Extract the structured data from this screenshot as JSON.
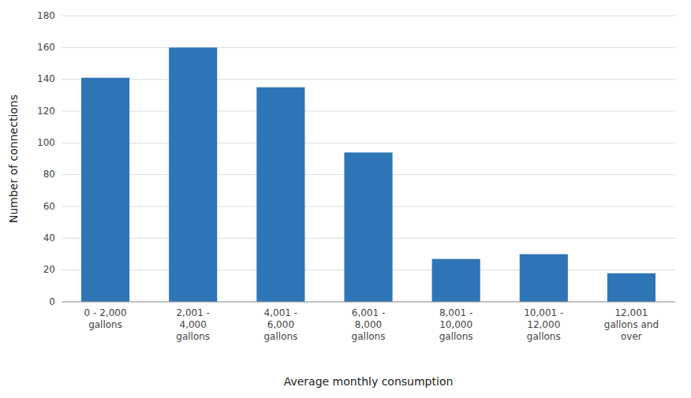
{
  "chart_data": {
    "type": "bar",
    "categories": [
      "0 - 2,000\ngallons",
      "2,001 -\n4,000\ngallons",
      "4,001 -\n6,000\ngallons",
      "6,001 -\n8,000\ngallons",
      "8,001 -\n10,000\ngallons",
      "10,001 -\n12,000\ngallons",
      "12,001\ngallons and\nover"
    ],
    "values": [
      141,
      160,
      135,
      94,
      27,
      30,
      18
    ],
    "color": "#2E75B6",
    "xlabel": "Average monthly consumption",
    "ylabel": "Number of connections",
    "ylim": [
      0,
      180
    ],
    "yticks": [
      0,
      20,
      40,
      60,
      80,
      100,
      120,
      140,
      160,
      180
    ],
    "grid": true
  }
}
